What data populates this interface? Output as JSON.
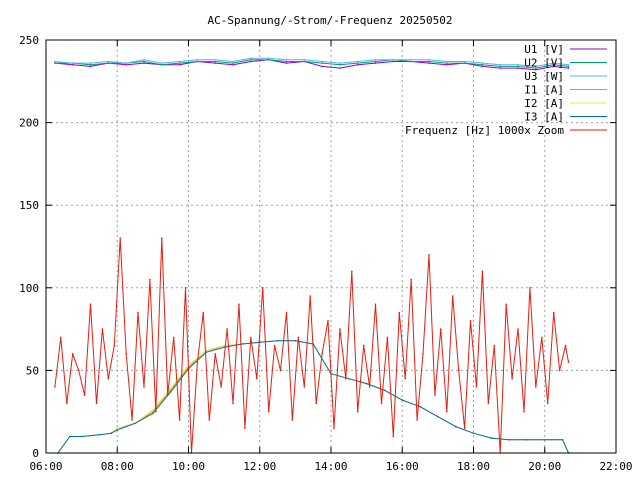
{
  "chart_data": {
    "type": "line",
    "title": "AC-Spannung/-Strom/-Frequenz 20250502",
    "xlabel": "",
    "ylabel": "",
    "xlim": [
      "06:00",
      "22:00"
    ],
    "ylim": [
      0,
      250
    ],
    "x_ticks": [
      "06:00",
      "08:00",
      "10:00",
      "12:00",
      "14:00",
      "16:00",
      "18:00",
      "20:00",
      "22:00"
    ],
    "y_ticks": [
      "0",
      "50",
      "100",
      "150",
      "200",
      "250"
    ],
    "grid": true,
    "legend_position": "top-right",
    "series": [
      {
        "name": "U1 [V]",
        "color": "#9400d3",
        "x": [
          "06:15",
          "06:45",
          "07:15",
          "07:45",
          "08:15",
          "08:45",
          "09:15",
          "09:45",
          "10:15",
          "10:45",
          "11:15",
          "11:45",
          "12:15",
          "12:45",
          "13:15",
          "13:45",
          "14:15",
          "14:45",
          "15:15",
          "15:45",
          "16:15",
          "16:45",
          "17:15",
          "17:45",
          "18:15",
          "18:45",
          "19:15",
          "19:45",
          "20:15",
          "20:40"
        ],
        "values": [
          236,
          235,
          234,
          236,
          235,
          236,
          235,
          235,
          237,
          236,
          235,
          237,
          238,
          236,
          237,
          234,
          233,
          235,
          236,
          237,
          237,
          236,
          235,
          236,
          234,
          233,
          233,
          232,
          234,
          233
        ]
      },
      {
        "name": "U2 [V]",
        "color": "#009e73",
        "x": [
          "06:15",
          "06:45",
          "07:15",
          "07:45",
          "08:15",
          "08:45",
          "09:15",
          "09:45",
          "10:15",
          "10:45",
          "11:15",
          "11:45",
          "12:15",
          "12:45",
          "13:15",
          "13:45",
          "14:15",
          "14:45",
          "15:15",
          "15:45",
          "16:15",
          "16:45",
          "17:15",
          "17:45",
          "18:15",
          "18:45",
          "19:15",
          "19:45",
          "20:15",
          "20:40"
        ],
        "values": [
          236,
          236,
          235,
          236,
          236,
          237,
          235,
          236,
          237,
          237,
          236,
          238,
          238,
          237,
          237,
          236,
          235,
          236,
          237,
          238,
          237,
          237,
          236,
          236,
          235,
          234,
          234,
          233,
          235,
          234
        ]
      },
      {
        "name": "U3 [W]",
        "color": "#56b4e9",
        "x": [
          "06:15",
          "06:45",
          "07:15",
          "07:45",
          "08:15",
          "08:45",
          "09:15",
          "09:45",
          "10:15",
          "10:45",
          "11:15",
          "11:45",
          "12:15",
          "12:45",
          "13:15",
          "13:45",
          "14:15",
          "14:45",
          "15:15",
          "15:45",
          "16:15",
          "16:45",
          "17:15",
          "17:45",
          "18:15",
          "18:45",
          "19:15",
          "19:45",
          "20:15",
          "20:40"
        ],
        "values": [
          237,
          236,
          236,
          237,
          236,
          238,
          236,
          237,
          238,
          238,
          237,
          239,
          239,
          238,
          238,
          237,
          236,
          237,
          238,
          238,
          238,
          238,
          237,
          237,
          236,
          235,
          235,
          234,
          236,
          235
        ]
      },
      {
        "name": "I1 [A]",
        "color": "#e69f00",
        "x": [
          "06:20",
          "06:40",
          "07:00",
          "07:30",
          "07:50",
          "08:00",
          "08:30",
          "09:00",
          "09:30",
          "10:00",
          "10:30",
          "11:00",
          "11:30",
          "12:00",
          "12:30",
          "13:00",
          "13:30",
          "14:00",
          "14:30",
          "15:00",
          "15:30",
          "16:00",
          "16:30",
          "17:00",
          "17:30",
          "18:00",
          "18:30",
          "19:00",
          "19:30",
          "20:00",
          "20:30",
          "20:40"
        ],
        "values": [
          0,
          10,
          10,
          11,
          12,
          15,
          18,
          25,
          38,
          52,
          62,
          64,
          66,
          67,
          68,
          68,
          66,
          48,
          45,
          42,
          38,
          32,
          28,
          22,
          16,
          12,
          9,
          8,
          8,
          8,
          8,
          0
        ]
      },
      {
        "name": "I2 [A]",
        "color": "#f0e442",
        "x": [
          "06:20",
          "06:40",
          "07:00",
          "07:30",
          "07:50",
          "08:00",
          "08:30",
          "09:00",
          "09:30",
          "10:00",
          "10:30",
          "11:00",
          "11:30",
          "12:00",
          "12:30",
          "13:00",
          "13:30",
          "14:00",
          "14:30",
          "15:00",
          "15:30",
          "16:00",
          "16:30",
          "17:00",
          "17:30",
          "18:00",
          "18:30",
          "19:00",
          "19:30",
          "20:00",
          "20:30",
          "20:40"
        ],
        "values": [
          0,
          10,
          10,
          11,
          12,
          15,
          18,
          26,
          39,
          53,
          62,
          65,
          66,
          67,
          68,
          68,
          66,
          48,
          45,
          42,
          38,
          32,
          28,
          22,
          16,
          12,
          9,
          8,
          8,
          8,
          8,
          0
        ]
      },
      {
        "name": "I3 [A]",
        "color": "#0072b2",
        "x": [
          "06:20",
          "06:40",
          "07:00",
          "07:30",
          "07:50",
          "08:00",
          "08:30",
          "09:00",
          "09:30",
          "10:00",
          "10:30",
          "11:00",
          "11:30",
          "12:00",
          "12:30",
          "13:00",
          "13:30",
          "14:00",
          "14:30",
          "15:00",
          "15:30",
          "16:00",
          "16:30",
          "17:00",
          "17:30",
          "18:00",
          "18:30",
          "19:00",
          "19:30",
          "20:00",
          "20:30",
          "20:40"
        ],
        "values": [
          0,
          10,
          10,
          11,
          12,
          14,
          18,
          24,
          37,
          51,
          61,
          64,
          66,
          67,
          68,
          68,
          66,
          48,
          45,
          42,
          38,
          32,
          28,
          22,
          16,
          12,
          9,
          8,
          8,
          8,
          8,
          0
        ]
      },
      {
        "name": "Frequenz [Hz] 1000x Zoom",
        "color": "#e51e10",
        "x": [
          "06:15",
          "06:25",
          "06:35",
          "06:45",
          "06:55",
          "07:05",
          "07:15",
          "07:25",
          "07:35",
          "07:45",
          "07:55",
          "08:05",
          "08:15",
          "08:25",
          "08:35",
          "08:45",
          "08:55",
          "09:05",
          "09:15",
          "09:25",
          "09:35",
          "09:45",
          "09:55",
          "10:05",
          "10:15",
          "10:25",
          "10:35",
          "10:45",
          "10:55",
          "11:05",
          "11:15",
          "11:25",
          "11:35",
          "11:45",
          "11:55",
          "12:05",
          "12:15",
          "12:25",
          "12:35",
          "12:45",
          "12:55",
          "13:05",
          "13:15",
          "13:25",
          "13:35",
          "13:45",
          "13:55",
          "14:05",
          "14:15",
          "14:25",
          "14:35",
          "14:45",
          "14:55",
          "15:05",
          "15:15",
          "15:25",
          "15:35",
          "15:45",
          "15:55",
          "16:05",
          "16:15",
          "16:25",
          "16:35",
          "16:45",
          "16:55",
          "17:05",
          "17:15",
          "17:25",
          "17:35",
          "17:45",
          "17:55",
          "18:05",
          "18:15",
          "18:25",
          "18:35",
          "18:45",
          "18:55",
          "19:05",
          "19:15",
          "19:25",
          "19:35",
          "19:45",
          "19:55",
          "20:05",
          "20:15",
          "20:25",
          "20:35",
          "20:40"
        ],
        "values": [
          40,
          70,
          30,
          60,
          50,
          35,
          90,
          30,
          75,
          45,
          65,
          130,
          60,
          20,
          85,
          40,
          105,
          25,
          130,
          35,
          70,
          20,
          100,
          0,
          55,
          85,
          20,
          60,
          40,
          75,
          30,
          90,
          15,
          70,
          45,
          100,
          25,
          65,
          50,
          85,
          20,
          70,
          40,
          95,
          30,
          60,
          80,
          15,
          75,
          45,
          110,
          25,
          65,
          40,
          90,
          30,
          70,
          10,
          85,
          45,
          105,
          20,
          60,
          120,
          35,
          75,
          25,
          95,
          50,
          15,
          80,
          40,
          110,
          30,
          65,
          0,
          90,
          45,
          75,
          25,
          100,
          40,
          70,
          30,
          85,
          50,
          65,
          55
        ]
      }
    ]
  }
}
